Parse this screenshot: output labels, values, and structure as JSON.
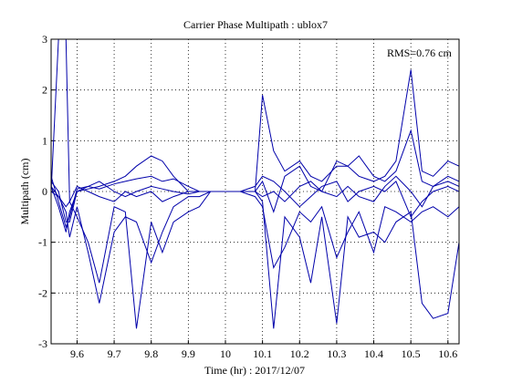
{
  "chart_data": {
    "type": "line",
    "title": "Carrier Phase Multipath : ublox7",
    "xlabel": "Time (hr) : 2017/12/07",
    "ylabel": "Multipath (cm)",
    "annotation": "RMS=0.76 cm",
    "xlim": [
      9.53,
      10.63
    ],
    "ylim": [
      -3,
      3
    ],
    "xticks": [
      "9.6",
      "9.7",
      "9.8",
      "9.9",
      "10",
      "10.1",
      "10.2",
      "10.3",
      "10.4",
      "10.5",
      "10.6"
    ],
    "xtick_values": [
      9.6,
      9.7,
      9.8,
      9.9,
      10.0,
      10.1,
      10.2,
      10.3,
      10.4,
      10.5,
      10.6
    ],
    "yticks": [
      "-3",
      "-2",
      "-1",
      "0",
      "1",
      "2",
      "3"
    ],
    "ytick_values": [
      -3,
      -2,
      -1,
      0,
      1,
      2,
      3
    ],
    "grid": true,
    "line_color": "#0000aa",
    "series": [
      {
        "x": [
          9.53,
          9.55,
          9.57,
          9.58,
          9.6,
          9.63,
          9.66,
          9.7,
          9.73,
          9.76,
          9.8,
          9.83,
          9.86,
          9.9,
          9.93,
          9.96,
          10.0,
          10.04,
          10.08,
          10.1,
          10.13,
          10.16,
          10.2,
          10.23,
          10.26,
          10.3,
          10.33,
          10.36,
          10.4,
          10.43,
          10.46,
          10.5,
          10.53,
          10.56,
          10.6,
          10.63
        ],
        "y": [
          0.3,
          -0.2,
          -0.7,
          -0.5,
          0.05,
          0.1,
          0.05,
          0.15,
          0.2,
          0.25,
          0.3,
          0.2,
          0.25,
          0.1,
          0.0,
          0.0,
          0.0,
          0.0,
          0.0,
          1.9,
          0.8,
          0.4,
          0.6,
          0.3,
          0.2,
          0.5,
          0.5,
          0.3,
          0.2,
          0.3,
          0.6,
          2.4,
          0.4,
          0.3,
          0.6,
          0.5
        ]
      },
      {
        "x": [
          9.53,
          9.55,
          9.57,
          9.58,
          9.6,
          9.63,
          9.66,
          9.7,
          9.73,
          9.76,
          9.8,
          9.83,
          9.86,
          9.9,
          9.93,
          9.96,
          10.0,
          10.04,
          10.08,
          10.1,
          10.13,
          10.16,
          10.2,
          10.23,
          10.26,
          10.3,
          10.33,
          10.36,
          10.4,
          10.43,
          10.46,
          10.5,
          10.53,
          10.56,
          10.6,
          10.63
        ],
        "y": [
          0.1,
          -0.3,
          -0.8,
          -0.4,
          0.0,
          0.05,
          0.1,
          0.2,
          0.3,
          0.5,
          0.7,
          0.6,
          0.3,
          0.0,
          0.0,
          0.0,
          0.0,
          0.0,
          0.0,
          0.2,
          -0.4,
          0.3,
          0.5,
          0.1,
          0.0,
          0.6,
          0.5,
          0.7,
          0.3,
          0.2,
          0.4,
          1.2,
          0.2,
          0.1,
          0.3,
          0.2
        ]
      },
      {
        "x": [
          9.53,
          9.55,
          9.57,
          9.58,
          9.6,
          9.63,
          9.66,
          9.7,
          9.73,
          9.76,
          9.8,
          9.83,
          9.86,
          9.9,
          9.93,
          9.96,
          10.0,
          10.04,
          10.08,
          10.1,
          10.13,
          10.16,
          10.2,
          10.23,
          10.26,
          10.3,
          10.33,
          10.36,
          10.4,
          10.43,
          10.46,
          10.5,
          10.53,
          10.56,
          10.6,
          10.63
        ],
        "y": [
          0.0,
          3.0,
          3.0,
          -0.2,
          -0.5,
          -1.0,
          -1.8,
          -0.3,
          -0.4,
          -2.7,
          -0.6,
          -1.2,
          -0.6,
          -0.4,
          -0.3,
          0.0,
          0.0,
          0.0,
          0.0,
          -0.2,
          -2.7,
          -0.5,
          -0.9,
          -1.8,
          -0.5,
          -2.6,
          -0.5,
          -0.9,
          -0.8,
          -1.0,
          -0.6,
          -0.4,
          -2.2,
          -2.5,
          -2.4,
          -1.0
        ]
      },
      {
        "x": [
          9.53,
          9.55,
          9.57,
          9.58,
          9.6,
          9.63,
          9.66,
          9.7,
          9.73,
          9.76,
          9.8,
          9.83,
          9.86,
          9.9,
          9.93,
          9.96,
          10.0,
          10.04,
          10.08,
          10.1,
          10.13,
          10.16,
          10.2,
          10.23,
          10.26,
          10.3,
          10.33,
          10.36,
          10.4,
          10.43,
          10.46,
          10.5,
          10.53,
          10.56,
          10.6,
          10.63
        ],
        "y": [
          0.0,
          -0.1,
          -0.4,
          -0.9,
          -0.3,
          -1.2,
          -2.2,
          -0.8,
          -0.5,
          -0.6,
          -1.4,
          -0.8,
          -0.3,
          -0.1,
          -0.1,
          0.0,
          0.0,
          0.0,
          -0.1,
          -0.3,
          -1.5,
          -1.1,
          -0.4,
          -0.6,
          -0.3,
          -1.3,
          -0.8,
          -0.4,
          -1.2,
          -0.3,
          -0.4,
          -0.6,
          -0.4,
          -0.3,
          -0.5,
          -0.3
        ]
      },
      {
        "x": [
          9.53,
          9.55,
          9.57,
          9.58,
          9.6,
          9.63,
          9.66,
          9.7,
          9.73,
          9.76,
          9.8,
          9.83,
          9.86,
          9.9,
          9.93,
          9.96,
          10.0,
          10.04,
          10.08,
          10.1,
          10.13,
          10.16,
          10.2,
          10.23,
          10.26,
          10.3,
          10.33,
          10.36,
          10.4,
          10.43,
          10.46,
          10.5,
          10.53,
          10.56,
          10.6,
          10.63
        ],
        "y": [
          0.2,
          0.0,
          -0.6,
          -0.6,
          0.0,
          0.1,
          0.2,
          0.0,
          -0.1,
          0.0,
          0.1,
          0.05,
          0.0,
          -0.05,
          0.0,
          0.0,
          0.0,
          0.0,
          0.1,
          0.3,
          0.2,
          0.0,
          -0.3,
          -0.1,
          0.1,
          0.2,
          -0.2,
          0.0,
          0.1,
          0.0,
          0.2,
          -0.5,
          -0.2,
          0.0,
          0.1,
          0.0
        ]
      },
      {
        "x": [
          9.53,
          9.55,
          9.57,
          9.58,
          9.6,
          9.63,
          9.66,
          9.7,
          9.73,
          9.76,
          9.8,
          9.83,
          9.86,
          9.9,
          9.93,
          9.96,
          10.0,
          10.04,
          10.08,
          10.1,
          10.13,
          10.16,
          10.2,
          10.23,
          10.26,
          10.3,
          10.33,
          10.36,
          10.4,
          10.43,
          10.46,
          10.5,
          10.53,
          10.56,
          10.6,
          10.63
        ],
        "y": [
          0.1,
          -0.1,
          -0.3,
          -0.2,
          0.1,
          0.0,
          -0.1,
          -0.2,
          0.0,
          -0.1,
          0.0,
          -0.2,
          -0.1,
          0.0,
          0.0,
          0.0,
          0.0,
          0.0,
          0.0,
          -0.1,
          0.0,
          -0.2,
          0.1,
          0.2,
          0.0,
          -0.1,
          0.1,
          -0.1,
          -0.2,
          0.1,
          0.3,
          0.0,
          -0.3,
          0.1,
          0.2,
          0.1
        ]
      }
    ]
  }
}
